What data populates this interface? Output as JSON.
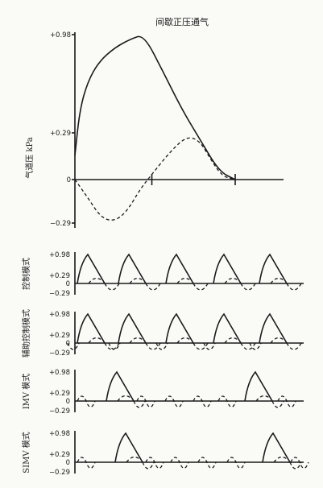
{
  "chart_data": [
    {
      "type": "line",
      "title": "间歇正压通气",
      "ylabel": "气道压 kPa",
      "yticks": [
        "+0.98",
        "+0.29",
        "0",
        "−0.29"
      ],
      "ylim": [
        -0.29,
        0.98
      ],
      "series": [
        {
          "style": "solid",
          "points": [
            [
              0,
              0.15
            ],
            [
              0.03,
              0.45
            ],
            [
              0.08,
              0.65
            ],
            [
              0.15,
              0.79
            ],
            [
              0.25,
              0.89
            ],
            [
              0.35,
              0.95
            ],
            [
              0.43,
              0.98
            ],
            [
              0.55,
              0.72
            ],
            [
              0.67,
              0.45
            ],
            [
              0.78,
              0.25
            ],
            [
              0.9,
              0.05
            ],
            [
              1,
              0
            ]
          ]
        },
        {
          "style": "dashed",
          "points": [
            [
              0,
              0
            ],
            [
              0.08,
              -0.12
            ],
            [
              0.16,
              -0.25
            ],
            [
              0.24,
              -0.28
            ],
            [
              0.32,
              -0.22
            ],
            [
              0.41,
              -0.06
            ],
            [
              0.47,
              0.02
            ],
            [
              0.6,
              0.18
            ],
            [
              0.7,
              0.27
            ],
            [
              0.78,
              0.24
            ],
            [
              0.85,
              0.12
            ],
            [
              0.92,
              0.02
            ],
            [
              1,
              0
            ]
          ]
        }
      ]
    },
    {
      "type": "line",
      "ylabel": "控制模式",
      "yticks": [
        "+0.98",
        "+0.29",
        "0",
        "−0.29"
      ],
      "ylim": [
        -0.29,
        0.98
      ],
      "mandatory_breaths": 5
    },
    {
      "type": "line",
      "ylabel": "辅助控制模式",
      "yticks": [
        "+0.98",
        "+0.29",
        "0",
        "−0.29"
      ],
      "ylim": [
        -0.29,
        0.98
      ],
      "mandatory_breaths": 5
    },
    {
      "type": "line",
      "ylabel": "IMV 模式",
      "yticks": [
        "+0.98",
        "+0.29",
        "0",
        "−0.29"
      ],
      "ylim": [
        -0.29,
        0.98
      ],
      "mandatory_breaths": 2,
      "spontaneous_breaths": 6
    },
    {
      "type": "line",
      "ylabel": "SIMV 模式",
      "yticks": [
        "+0.98",
        "+0.29",
        "0",
        "−0.29"
      ],
      "ylim": [
        -0.29,
        0.98
      ],
      "mandatory_breaths": 2,
      "spontaneous_breaths": 6
    }
  ]
}
